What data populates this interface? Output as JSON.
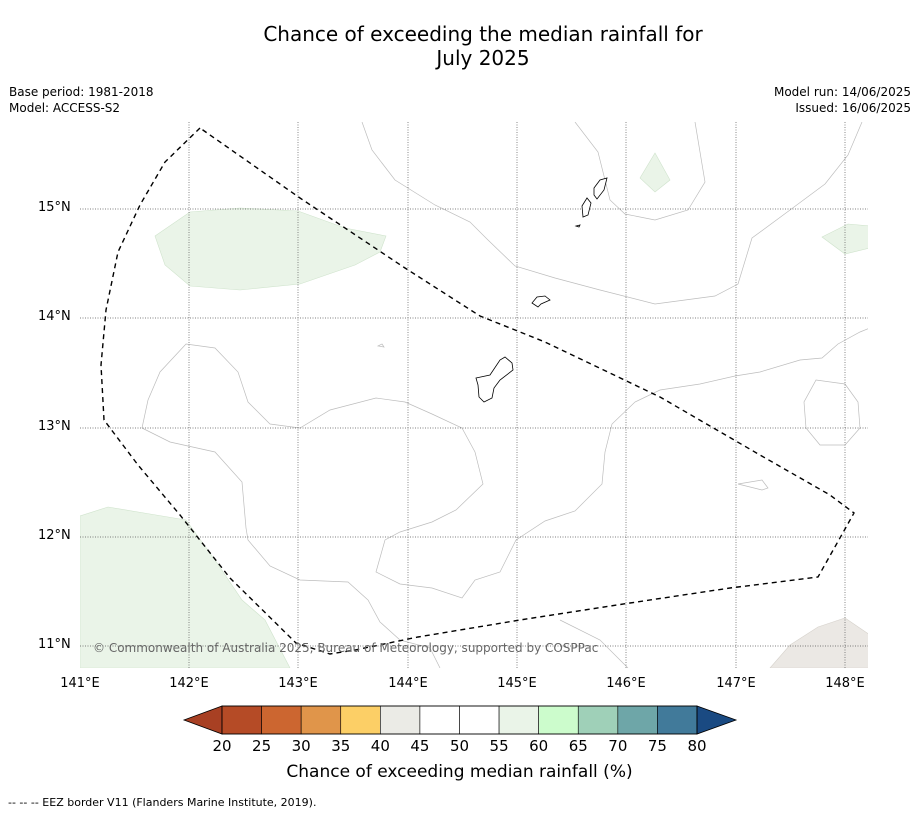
{
  "title": {
    "line1": "Chance of exceeding the median rainfall for",
    "line2": "July 2025"
  },
  "meta": {
    "base_period": "Base period: 1981-2018",
    "model": "Model: ACCESS-S2",
    "model_run": "Model run: 14/06/2025",
    "issued": "Issued: 16/06/2025"
  },
  "axes": {
    "lat_ticks": [
      "15°N",
      "14°N",
      "13°N",
      "12°N",
      "11°N"
    ],
    "lon_ticks": [
      "141°E",
      "142°E",
      "143°E",
      "144°E",
      "145°E",
      "146°E",
      "147°E",
      "148°E"
    ]
  },
  "copyright": "© Commonwealth of Australia 2025, Bureau of Meteorology, supported by COSPPac",
  "colorbar": {
    "title": "Chance of exceeding median rainfall (%)",
    "labels": [
      "20",
      "25",
      "30",
      "35",
      "40",
      "45",
      "50",
      "55",
      "60",
      "65",
      "70",
      "75",
      "80"
    ],
    "colors": [
      "#a84023",
      "#b54b26",
      "#cc6630",
      "#e0954a",
      "#fccf66",
      "#ebebe6",
      "#ffffff",
      "#ffffff",
      "#eaf4e8",
      "#ccfccc",
      "#9fd0b8",
      "#6ea6a8",
      "#417a9a",
      "#1a4a82"
    ]
  },
  "footnote": "--  --  -- EEZ border V11 (Flanders Marine Institute, 2019).",
  "palette": {
    "light_green_region": "#eaf4e8",
    "grey_region": "#ebe8e4",
    "contour_line": "#bdbdbd",
    "grid_line": "#555555"
  }
}
